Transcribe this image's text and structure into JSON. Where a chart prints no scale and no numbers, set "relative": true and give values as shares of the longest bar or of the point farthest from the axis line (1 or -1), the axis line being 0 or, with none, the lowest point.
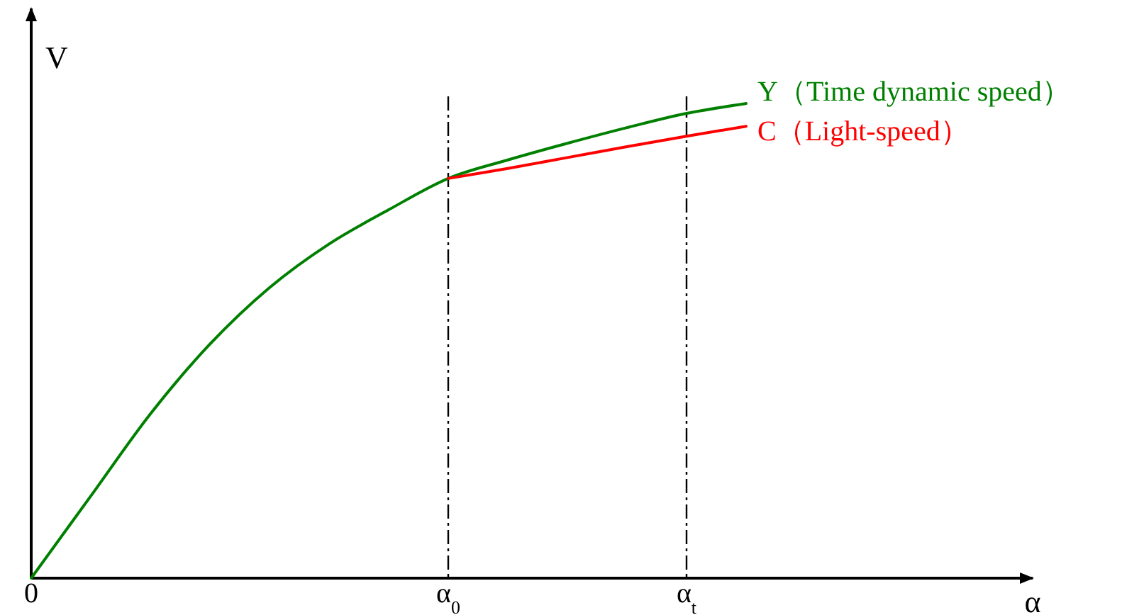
{
  "chart_data": {
    "type": "line",
    "relative": true,
    "xlabel": "α",
    "ylabel": "V",
    "categories": [
      "0",
      null,
      null,
      null,
      null,
      null,
      null,
      "α$_{0}$",
      null,
      null,
      null,
      "α$_{t}$",
      null,
      null,
      null,
      null,
      null
    ],
    "series": [
      {
        "name": "Y（Time dynamic speed）",
        "color": "#008000",
        "values": [
          0,
          0.173,
          0.346,
          0.493,
          0.612,
          0.704,
          0.776,
          0.842,
          0.881,
          0.916,
          0.949,
          0.979,
          1,
          null,
          null,
          null,
          null
        ]
      },
      {
        "name": "C（Light-speed）",
        "color": "#ff0000",
        "values": [
          null,
          null,
          null,
          null,
          null,
          null,
          null,
          0.842,
          0.863,
          0.886,
          0.909,
          0.931,
          0.952,
          null,
          null,
          null,
          null
        ]
      }
    ],
    "ref_lines": [
      {
        "axis": "x",
        "value": "α$_{0}$",
        "color": "#000000",
        "line_style": "dashed"
      },
      {
        "axis": "x",
        "value": "α$_{t}$",
        "color": "#000000",
        "line_style": "dashed"
      }
    ],
    "marker": "none",
    "line_style": "solid"
  }
}
